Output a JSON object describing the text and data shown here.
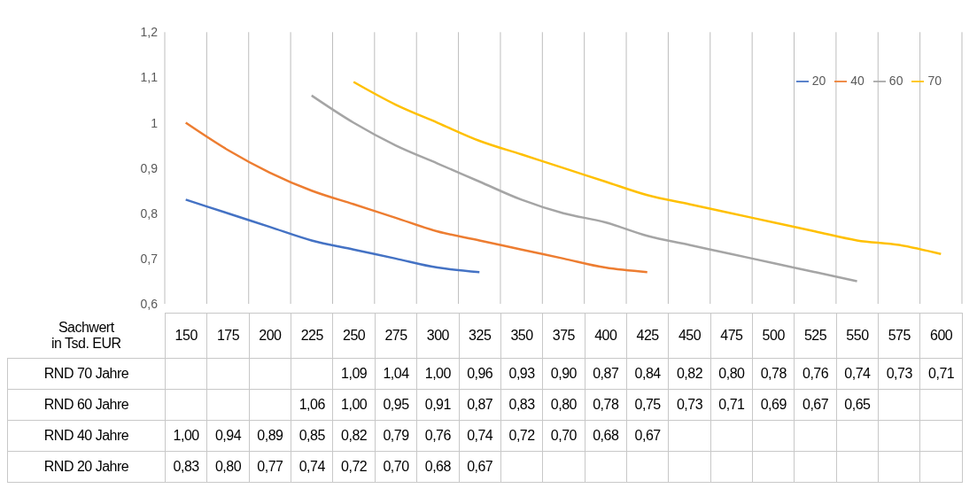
{
  "chart_data": {
    "type": "line",
    "xlabel": "Sachwert\nin Tsd. EUR",
    "annotations": [
      "RND 70 Jahre",
      "RND 60 Jahre",
      "RND 40 Jahre",
      "RND 20 Jahre"
    ],
    "categories": [
      "150",
      "175",
      "200",
      "225",
      "250",
      "275",
      "300",
      "325",
      "350",
      "375",
      "400",
      "425",
      "450",
      "475",
      "500",
      "525",
      "550",
      "575",
      "600"
    ],
    "series": [
      {
        "name": "20",
        "color": "#4472c4",
        "values": [
          0.83,
          0.8,
          0.77,
          0.74,
          0.72,
          0.7,
          0.68,
          0.67,
          null,
          null,
          null,
          null,
          null,
          null,
          null,
          null,
          null,
          null,
          null
        ],
        "value_labels": [
          "0,83",
          "0,80",
          "0,77",
          "0,74",
          "0,72",
          "0,70",
          "0,68",
          "0,67",
          null,
          null,
          null,
          null,
          null,
          null,
          null,
          null,
          null,
          null,
          null
        ]
      },
      {
        "name": "40",
        "color": "#ed7d31",
        "values": [
          1.0,
          0.94,
          0.89,
          0.85,
          0.82,
          0.79,
          0.76,
          0.74,
          0.72,
          0.7,
          0.68,
          0.67,
          null,
          null,
          null,
          null,
          null,
          null,
          null
        ],
        "value_labels": [
          "1,00",
          "0,94",
          "0,89",
          "0,85",
          "0,82",
          "0,79",
          "0,76",
          "0,74",
          "0,72",
          "0,70",
          "0,68",
          "0,67",
          null,
          null,
          null,
          null,
          null,
          null,
          null
        ]
      },
      {
        "name": "60",
        "color": "#a5a5a5",
        "values": [
          null,
          null,
          null,
          1.06,
          1.0,
          0.95,
          0.91,
          0.87,
          0.83,
          0.8,
          0.78,
          0.75,
          0.73,
          0.71,
          0.69,
          0.67,
          0.65,
          null,
          null
        ],
        "value_labels": [
          null,
          null,
          null,
          "1,06",
          "1,00",
          "0,95",
          "0,91",
          "0,87",
          "0,83",
          "0,80",
          "0,78",
          "0,75",
          "0,73",
          "0,71",
          "0,69",
          "0,67",
          "0,65",
          null,
          null
        ]
      },
      {
        "name": "70",
        "color": "#ffc000",
        "values": [
          null,
          null,
          null,
          null,
          1.09,
          1.04,
          1.0,
          0.96,
          0.93,
          0.9,
          0.87,
          0.84,
          0.82,
          0.8,
          0.78,
          0.76,
          0.74,
          0.73,
          0.71
        ],
        "value_labels": [
          null,
          null,
          null,
          null,
          "1,09",
          "1,04",
          "1,00",
          "0,96",
          "0,93",
          "0,90",
          "0,87",
          "0,84",
          "0,82",
          "0,80",
          "0,78",
          "0,76",
          "0,74",
          "0,73",
          "0,71"
        ]
      }
    ],
    "ylim": [
      0.6,
      1.2
    ],
    "yticks": [
      {
        "value": 0.6,
        "label": "0,6"
      },
      {
        "value": 0.7,
        "label": "0,7"
      },
      {
        "value": 0.8,
        "label": "0,8"
      },
      {
        "value": 0.9,
        "label": "0,9"
      },
      {
        "value": 1,
        "label": "1"
      },
      {
        "value": 1.1,
        "label": "1,1"
      },
      {
        "value": 1.2,
        "label": "1,2"
      }
    ],
    "grid": "x",
    "legend": "top right",
    "marker": "none",
    "line_style": "solid"
  }
}
